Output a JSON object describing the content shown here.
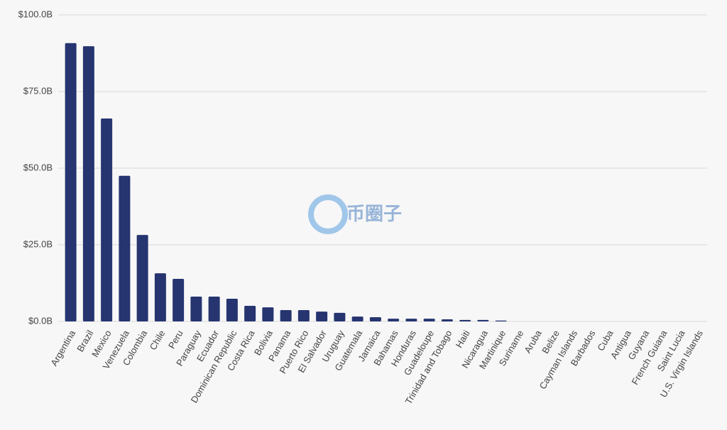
{
  "chart_data": {
    "type": "bar",
    "categories": [
      "Argentina",
      "Brazil",
      "Mexico",
      "Venezuela",
      "Colombia",
      "Chile",
      "Peru",
      "Paraguay",
      "Ecuador",
      "Dominican Republic",
      "Costa Rica",
      "Bolivia",
      "Panama",
      "Puerto Rico",
      "El Salvador",
      "Uruguay",
      "Guatemala",
      "Jamaica",
      "Bahamas",
      "Honduras",
      "Guadeloupe",
      "Trinidad and Tobago",
      "Haiti",
      "Nicaragua",
      "Martinique",
      "Suriname",
      "Aruba",
      "Belize",
      "Cayman Islands",
      "Barbados",
      "Cuba",
      "Antigua",
      "Guyana",
      "French Guiana",
      "Saint Lucia",
      "U.S. Virgin Islands"
    ],
    "values": [
      90.8,
      89.8,
      66.2,
      47.5,
      28.2,
      15.7,
      13.9,
      8.1,
      8.1,
      7.4,
      5.1,
      4.6,
      3.7,
      3.7,
      3.2,
      2.8,
      1.6,
      1.4,
      0.9,
      0.9,
      0.9,
      0.7,
      0.5,
      0.5,
      0.3,
      0,
      0,
      0,
      0,
      0,
      0,
      0,
      0,
      0,
      0,
      0
    ],
    "color": "#263570",
    "ylim": [
      0,
      100
    ],
    "yticks": [
      {
        "value": 0,
        "label": "$0.0B"
      },
      {
        "value": 25,
        "label": "$25.0B"
      },
      {
        "value": 50,
        "label": "$50.0B"
      },
      {
        "value": 75,
        "label": "$75.0B"
      },
      {
        "value": 100,
        "label": "$100.0B"
      }
    ],
    "grid": true
  },
  "watermark": "币圈子"
}
